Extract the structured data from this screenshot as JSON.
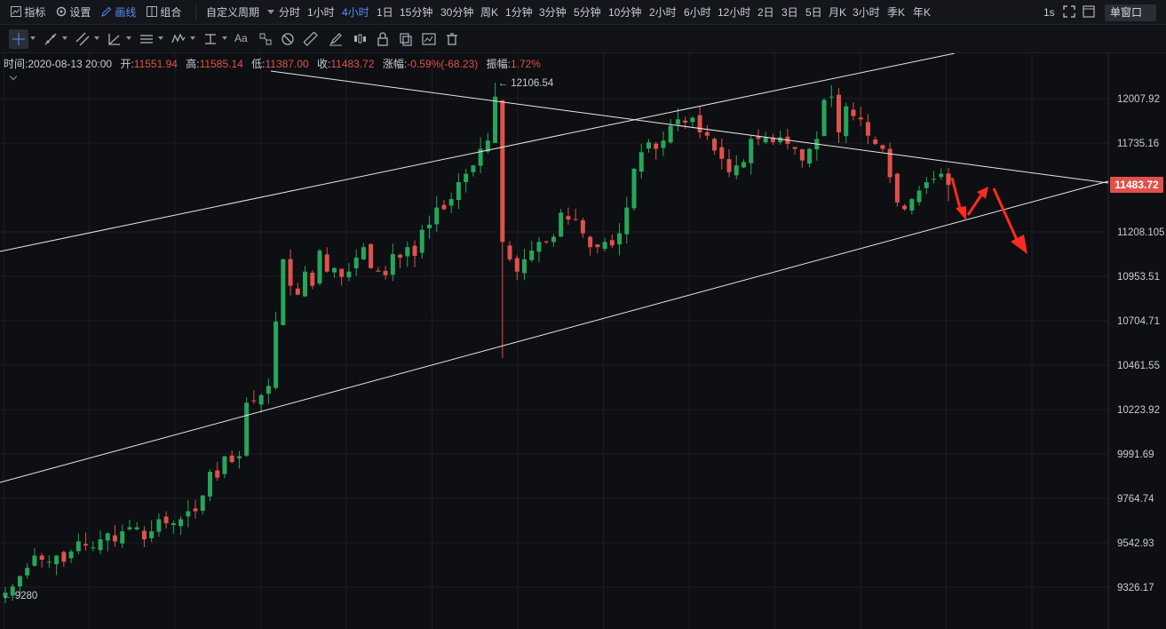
{
  "topbar": {
    "indicators_label": "指标",
    "settings_label": "设置",
    "draw_label": "画线",
    "combo_label": "组合",
    "custom_period_label": "自定义周期",
    "periods": [
      "分时",
      "1小时",
      "4小时",
      "1日",
      "15分钟",
      "30分钟",
      "周K",
      "1分钟",
      "3分钟",
      "5分钟",
      "10分钟",
      "2小时",
      "6小时",
      "12小时",
      "2日",
      "3日",
      "5日",
      "月K",
      "3小时",
      "季K",
      "年K"
    ],
    "active_period": "4小时",
    "refresh_label": "1s",
    "window_mode_label": "单窗口"
  },
  "toolbar": {
    "tools": [
      "crosshair-tool",
      "trend-line-tool",
      "parallel-channel-tool",
      "angle-tool",
      "horizontal-line-tool",
      "wave-tool",
      "measure-tool",
      "fib-tool",
      "pattern-tool",
      "text-tool",
      "gann-tool",
      "ruler-tool",
      "brush-tool",
      "position-tool",
      "lock-tool",
      "copy-tool",
      "screenshot-tool",
      "delete-tool"
    ],
    "text_tool_label": "Aa"
  },
  "info": {
    "time_label": "时间:",
    "time_value": "2020-08-13 20:00",
    "open_label": "开:",
    "open_value": "11551.94",
    "high_label": "高:",
    "high_value": "11585.14",
    "low_label": "低:",
    "low_value": "11387.00",
    "close_label": "收:",
    "close_value": "11483.72",
    "change_label": "涨幅:",
    "change_value": "-0.59%(-68.23)",
    "amplitude_label": "振幅:",
    "amplitude_value": "1.72%"
  },
  "colors": {
    "up": "#26a65b",
    "down": "#e0514b",
    "background": "#0e0f12",
    "accent": "#4f8ef7",
    "drawn_line": "#e8e8e8",
    "arrow": "#ff2b1f"
  },
  "chart_data": {
    "type": "candlestick",
    "y_ticks": [
      "12007.92",
      "11735.16",
      "11208.105",
      "10953.51",
      "10704.71",
      "10461.55",
      "10223.92",
      "9991.69",
      "9764.74",
      "9542.93",
      "9326.17"
    ],
    "ylim": [
      9200,
      12300
    ],
    "scale": "log",
    "current_price": "11483.72",
    "high_marker": "12106.54",
    "low_marker": "9280",
    "candle_count": 130,
    "candle_closes": [
      9300,
      9330,
      9380,
      9420,
      9480,
      9460,
      9450,
      9480,
      9450,
      9500,
      9550,
      9530,
      9520,
      9560,
      9590,
      9550,
      9600,
      9620,
      9620,
      9560,
      9600,
      9660,
      9640,
      9640,
      9660,
      9700,
      9700,
      9780,
      9900,
      9870,
      9980,
      9950,
      9980,
      10260,
      10270,
      10300,
      10350,
      10700,
      11050,
      10900,
      10850,
      10980,
      10900,
      11100,
      10980,
      11000,
      10950,
      10980,
      11060,
      11120,
      11000,
      10980,
      10960,
      11080,
      11060,
      11120,
      11070,
      11220,
      11250,
      11350,
      11340,
      11400,
      11500,
      11550,
      11600,
      11700,
      11750,
      12020,
      11150,
      11050,
      10980,
      11050,
      11100,
      11150,
      11150,
      11180,
      11320,
      11280,
      11280,
      11200,
      11120,
      11120,
      11150,
      11130,
      11200,
      11350,
      11580,
      11680,
      11740,
      11700,
      11750,
      11840,
      11880,
      11860,
      11890,
      11800,
      11780,
      11690,
      11640,
      11560,
      11600,
      11620,
      11760,
      11760,
      11770,
      11740,
      11770,
      11730,
      11700,
      11630,
      11700,
      11760,
      12000,
      12020,
      11800,
      11960,
      11900,
      11880,
      11780,
      11730,
      11700,
      11530,
      11380,
      11340,
      11400,
      11450,
      11500,
      11520,
      11550,
      11483.72
    ],
    "annotations": [
      "upper-channel-line",
      "lower-channel-line",
      "descending-resistance-line",
      "red-zigzag-arrow-down"
    ]
  }
}
